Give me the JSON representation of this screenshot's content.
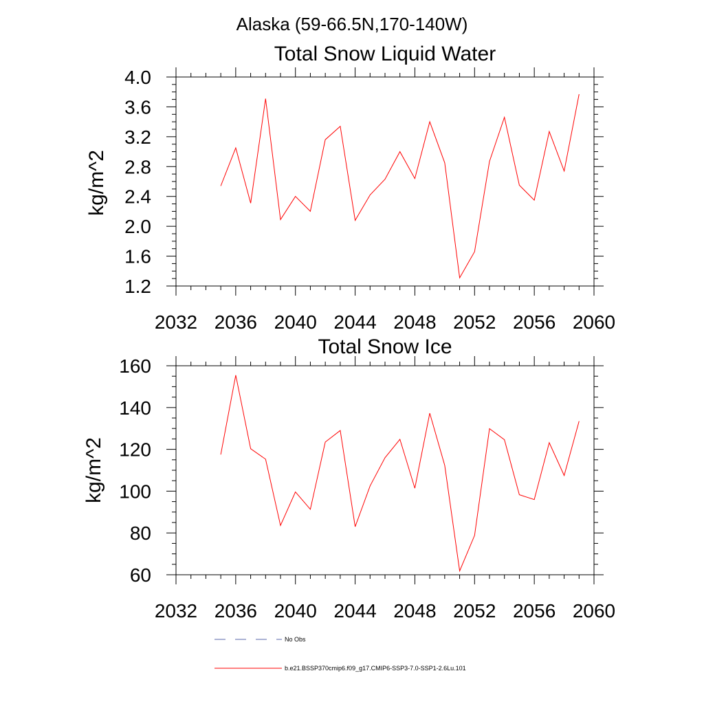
{
  "page_title": "Alaska (59-66.5N,170-140W)",
  "colors": {
    "model": "#ff0000",
    "obs": "#5566aa",
    "axis": "#000000"
  },
  "chart_data": [
    {
      "type": "line",
      "title": "Total Snow Liquid Water",
      "ylabel": "kg/m^2",
      "xlabel": "",
      "xlim": [
        2032,
        2060
      ],
      "ylim": [
        1.2,
        4.0
      ],
      "xticks": [
        "2032",
        "2036",
        "2040",
        "2044",
        "2048",
        "2052",
        "2056",
        "2060"
      ],
      "yticks": [
        "1.2",
        "1.6",
        "2.0",
        "2.4",
        "2.8",
        "3.2",
        "3.6",
        "4.0"
      ],
      "grid": false,
      "series": [
        {
          "name": "b.e21.BSSP370cmip6.f09_g17.CMIP6-SSP3-7.0-SSP1-2.6Lu.101",
          "x": [
            2035,
            2036,
            2037,
            2038,
            2039,
            2040,
            2041,
            2042,
            2043,
            2044,
            2045,
            2046,
            2047,
            2048,
            2049,
            2050,
            2051,
            2052,
            2053,
            2054,
            2055,
            2056,
            2057,
            2058,
            2059
          ],
          "y": [
            2.54,
            3.05,
            2.31,
            3.71,
            2.09,
            2.4,
            2.2,
            3.16,
            3.34,
            2.08,
            2.42,
            2.63,
            3.0,
            2.64,
            3.4,
            2.85,
            1.31,
            1.66,
            2.87,
            3.46,
            2.55,
            2.35,
            3.27,
            2.74,
            3.77
          ]
        }
      ]
    },
    {
      "type": "line",
      "title": "Total Snow Ice",
      "ylabel": "kg/m^2",
      "xlabel": "",
      "xlim": [
        2032,
        2060
      ],
      "ylim": [
        60,
        160
      ],
      "xticks": [
        "2032",
        "2036",
        "2040",
        "2044",
        "2048",
        "2052",
        "2056",
        "2060"
      ],
      "yticks": [
        "60",
        "80",
        "100",
        "120",
        "140",
        "160"
      ],
      "grid": false,
      "series": [
        {
          "name": "b.e21.BSSP370cmip6.f09_g17.CMIP6-SSP3-7.0-SSP1-2.6Lu.101",
          "x": [
            2035,
            2036,
            2037,
            2038,
            2039,
            2040,
            2041,
            2042,
            2043,
            2044,
            2045,
            2046,
            2047,
            2048,
            2049,
            2050,
            2051,
            2052,
            2053,
            2054,
            2055,
            2056,
            2057,
            2058,
            2059
          ],
          "y": [
            117.5,
            155.5,
            120.3,
            115.3,
            83.6,
            99.6,
            91.3,
            123.5,
            129.0,
            83.0,
            102.5,
            116.0,
            124.8,
            101.4,
            137.3,
            112.3,
            61.8,
            78.8,
            129.9,
            124.6,
            98.3,
            96.0,
            123.2,
            107.5,
            133.5
          ]
        }
      ]
    }
  ],
  "legend": {
    "placement": "bottom-left",
    "entries": [
      {
        "label": "No Obs",
        "style": "dashed"
      },
      {
        "label": "b.e21.BSSP370cmip6.f09_g17.CMIP6-SSP3-7.0-SSP1-2.6Lu.101",
        "style": "solid"
      }
    ]
  }
}
